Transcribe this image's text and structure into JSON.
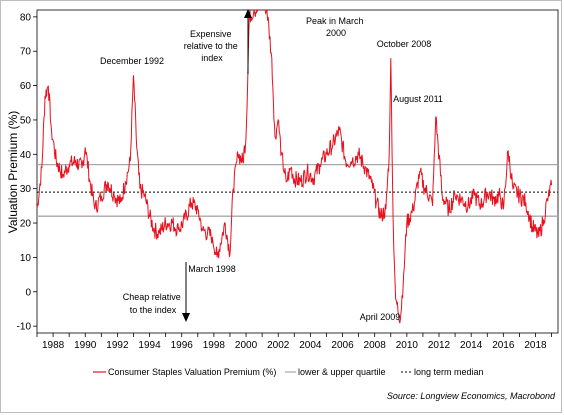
{
  "chart_data": {
    "type": "line",
    "ylabel": "Valuation Premium (%)",
    "xlabel": "",
    "ylim": [
      -12,
      82
    ],
    "xlim": [
      1987.0,
      2019.4
    ],
    "y_ticks": [
      -10,
      0,
      10,
      20,
      30,
      40,
      50,
      60,
      70,
      80
    ],
    "x_ticks": [
      1988,
      1990,
      1992,
      1994,
      1996,
      1998,
      2000,
      2002,
      2004,
      2006,
      2008,
      2010,
      2012,
      2014,
      2016,
      2018
    ],
    "grid": false,
    "legend": "bottom",
    "source": "Source: Longview Economics, Macrobond",
    "series": [
      {
        "name": "Consumer Staples Valuation Premium (%)",
        "color": "#e8101d",
        "x": [
          1987.0,
          1987.3,
          1987.5,
          1987.7,
          1987.9,
          1988.2,
          1988.6,
          1989.0,
          1989.4,
          1989.8,
          1990.0,
          1990.3,
          1990.6,
          1991.0,
          1991.4,
          1991.8,
          1992.2,
          1992.5,
          1992.8,
          1993.0,
          1993.2,
          1993.4,
          1993.7,
          1994.0,
          1994.3,
          1994.6,
          1995.0,
          1995.4,
          1995.8,
          1996.2,
          1996.6,
          1997.0,
          1997.3,
          1997.6,
          1997.9,
          1998.2,
          1998.4,
          1998.7,
          1999.0,
          1999.2,
          1999.5,
          1999.8,
          2000.0,
          2000.2,
          2000.5,
          2000.8,
          2001.0,
          2001.3,
          2001.6,
          2001.8,
          2002.0,
          2002.2,
          2002.5,
          2002.8,
          2003.0,
          2003.4,
          2003.8,
          2004.2,
          2004.6,
          2005.0,
          2005.4,
          2005.8,
          2006.2,
          2006.6,
          2007.0,
          2007.4,
          2007.8,
          2008.1,
          2008.4,
          2008.7,
          2008.9,
          2009.0,
          2009.15,
          2009.3,
          2009.6,
          2009.8,
          2010.0,
          2010.4,
          2010.8,
          2011.1,
          2011.4,
          2011.6,
          2011.8,
          2012.2,
          2012.6,
          2013.0,
          2013.4,
          2013.8,
          2014.2,
          2014.6,
          2015.0,
          2015.4,
          2015.8,
          2016.0,
          2016.3,
          2016.6,
          2017.0,
          2017.4,
          2017.8,
          2018.2,
          2018.5,
          2018.8,
          2019.0
        ],
        "values": [
          24,
          36,
          57,
          60,
          47,
          38,
          34,
          37,
          38,
          36,
          42,
          32,
          24,
          28,
          32,
          28,
          26,
          32,
          38,
          63,
          42,
          30,
          28,
          22,
          18,
          17,
          20,
          20,
          18,
          21,
          26,
          24,
          18,
          17,
          16,
          10,
          14,
          20,
          11,
          30,
          40,
          38,
          45,
          80,
          82,
          82,
          85,
          82,
          68,
          45,
          50,
          40,
          32,
          36,
          33,
          32,
          35,
          33,
          37,
          40,
          43,
          47,
          38,
          38,
          40,
          36,
          32,
          26,
          22,
          24,
          40,
          68,
          20,
          -2,
          -8,
          5,
          20,
          24,
          35,
          30,
          28,
          25,
          51,
          28,
          24,
          28,
          27,
          25,
          28,
          25,
          29,
          27,
          28,
          24,
          41,
          30,
          28,
          26,
          19,
          16,
          21,
          28,
          31
        ]
      },
      {
        "name": "lower & upper quartile",
        "color": "#a8a8a8",
        "values": [
          22,
          37
        ]
      },
      {
        "name": "long term median",
        "color": "#000000",
        "values": [
          29
        ]
      }
    ],
    "annotations": [
      {
        "text": "December 1992"
      },
      {
        "text": "Expensive relative to the index"
      },
      {
        "text": "Peak in March 2000"
      },
      {
        "text": "October 2008"
      },
      {
        "text": "August 2011"
      },
      {
        "text": "March 1998"
      },
      {
        "text": "Cheap relative to the index"
      },
      {
        "text": "April 2009"
      }
    ]
  }
}
